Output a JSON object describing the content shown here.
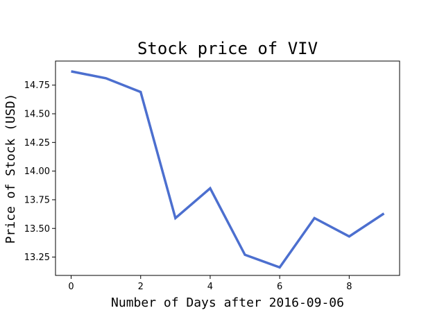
{
  "chart_data": {
    "type": "line",
    "title": "Stock price of VIV",
    "xlabel": "Number of Days after 2016-09-06",
    "ylabel": "Price of Stock (USD)",
    "xlim": [
      -0.45,
      9.45
    ],
    "ylim": [
      13.09,
      14.96
    ],
    "x_ticks": [
      0,
      2,
      4,
      6,
      8
    ],
    "x_tick_labels": [
      "0",
      "2",
      "4",
      "6",
      "8"
    ],
    "y_ticks": [
      13.25,
      13.5,
      13.75,
      14.0,
      14.25,
      14.5,
      14.75
    ],
    "y_tick_labels": [
      "13.25",
      "13.50",
      "13.75",
      "14.00",
      "14.25",
      "14.50",
      "14.75"
    ],
    "grid": false,
    "series": [
      {
        "color": "#4c6fcf",
        "x": [
          0,
          1,
          2,
          3,
          4,
          5,
          6,
          7,
          8,
          9
        ],
        "values": [
          14.87,
          14.81,
          14.69,
          13.59,
          13.85,
          13.27,
          13.16,
          13.59,
          13.43,
          13.63
        ]
      }
    ]
  }
}
